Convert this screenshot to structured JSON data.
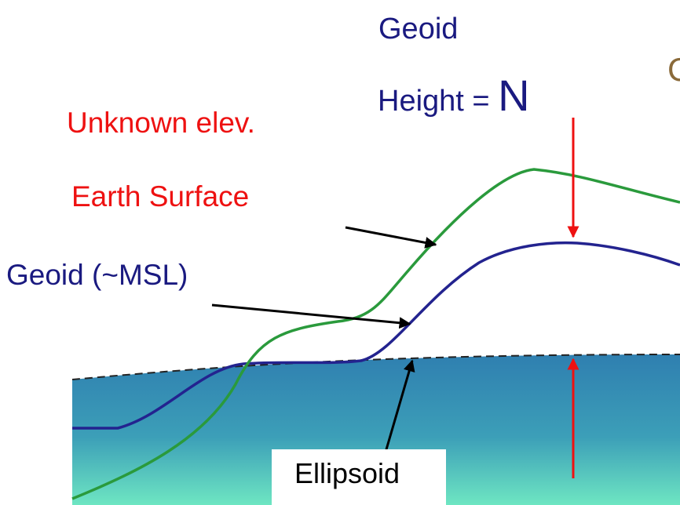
{
  "labels": {
    "geoid_height_line1": "Geoid",
    "geoid_height_line2": "Height =",
    "geoid_height_symbol": "N",
    "unknown_elevation": "Unknown elev.",
    "earth_surface": "Earth Surface",
    "geoid_msl": "Geoid (~MSL)",
    "ellipsoid": "Ellipsoid",
    "cropped_text": "C"
  },
  "colors": {
    "earth_surface_line": "#2a9a3c",
    "geoid_line": "#23238f",
    "ellipsoid_line": "#222222",
    "arrows_red": "#ee1111",
    "arrows_black": "#000000",
    "ellipsoid_fill_top": "#2f7fb0",
    "ellipsoid_fill_bottom": "#6ee6c2",
    "label_red": "#ee1111",
    "label_navy": "#1a1a80"
  }
}
